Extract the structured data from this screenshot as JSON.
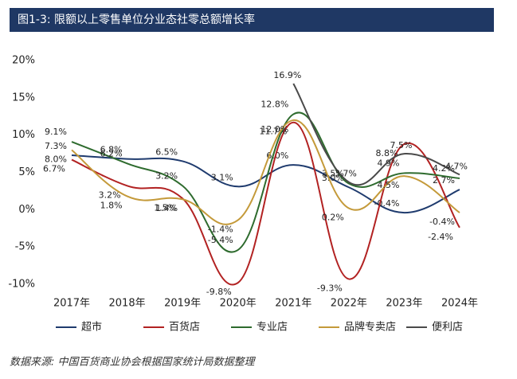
{
  "chart_data": {
    "type": "line",
    "title": "图1-3:   限额以上零售单位分业态社零总额增长率",
    "source": "数据来源: 中国百货商业协会根据国家统计局数据整理",
    "categories": [
      "2017年",
      "2018年",
      "2019年",
      "2020年",
      "2021年",
      "2022年",
      "2023年",
      "2024年"
    ],
    "ylim": [
      -10,
      20
    ],
    "yticks": [
      {
        "value": -10,
        "label": "-10%"
      },
      {
        "value": -5,
        "label": "-5%"
      },
      {
        "value": 0,
        "label": "0%"
      },
      {
        "value": 5,
        "label": "5%"
      },
      {
        "value": 10,
        "label": "10%"
      },
      {
        "value": 15,
        "label": "15%"
      },
      {
        "value": 20,
        "label": "20%"
      }
    ],
    "grid": false,
    "series": [
      {
        "name": "超市",
        "color": "#1f3b6e",
        "values": [
          7.3,
          6.8,
          6.5,
          3.1,
          6.0,
          3.0,
          -0.4,
          2.7
        ],
        "value_labels": [
          "7.3%",
          "6.8%",
          "6.5%",
          "3.1%",
          "6.0%",
          "3.0%",
          "-0.4%",
          "2.7%"
        ]
      },
      {
        "name": "百货店",
        "color": "#b22222",
        "values": [
          6.7,
          3.2,
          1.5,
          -9.8,
          11.7,
          -9.3,
          8.8,
          -2.4
        ],
        "value_labels": [
          "6.7%",
          "3.2%",
          "1.5%",
          "-9.8%",
          "11.7%",
          "-9.3%",
          "8.8%",
          "-2.4%"
        ]
      },
      {
        "name": "专业店",
        "color": "#2e6b2e",
        "values": [
          9.1,
          6.2,
          3.2,
          -5.4,
          12.8,
          3.5,
          4.9,
          4.2
        ],
        "value_labels": [
          "9.1%",
          "6.2%",
          "3.2%",
          "-5.4%",
          "12.8%",
          "3.5%",
          "4.9%",
          "4.2%"
        ]
      },
      {
        "name": "品牌专卖店",
        "color": "#c49a3a",
        "values": [
          8.0,
          1.8,
          1.4,
          -1.4,
          12.0,
          0.2,
          4.5,
          -0.4
        ],
        "value_labels": [
          "8.0%",
          "1.8%",
          "1.4%",
          "-1.4%",
          "12.0%",
          "0.2%",
          "4.5%",
          "-0.4%"
        ]
      },
      {
        "name": "便利店",
        "color": "#4a4a4a",
        "values": [
          null,
          null,
          null,
          null,
          16.9,
          3.7,
          7.5,
          4.7
        ],
        "value_labels": [
          null,
          null,
          null,
          null,
          "16.9%",
          "3.7%",
          "7.5%",
          "4.7%"
        ]
      }
    ]
  }
}
